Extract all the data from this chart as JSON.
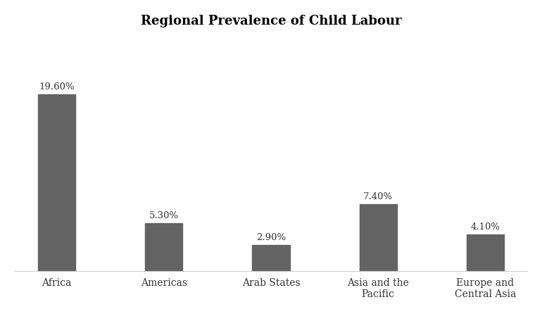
{
  "title": "Regional Prevalence of Child Labour",
  "categories": [
    "Africa",
    "Americas",
    "Arab States",
    "Asia and the\nPacific",
    "Europe and\nCentral Asia"
  ],
  "values": [
    19.6,
    5.3,
    2.9,
    7.4,
    4.1
  ],
  "labels": [
    "19.60%",
    "5.30%",
    "2.90%",
    "7.40%",
    "4.10%"
  ],
  "bar_color": "#636363",
  "background_color": "#ffffff",
  "title_fontsize": 13,
  "label_fontsize": 9.5,
  "tick_fontsize": 10,
  "bar_width": 0.35,
  "ylim": [
    0,
    26
  ]
}
